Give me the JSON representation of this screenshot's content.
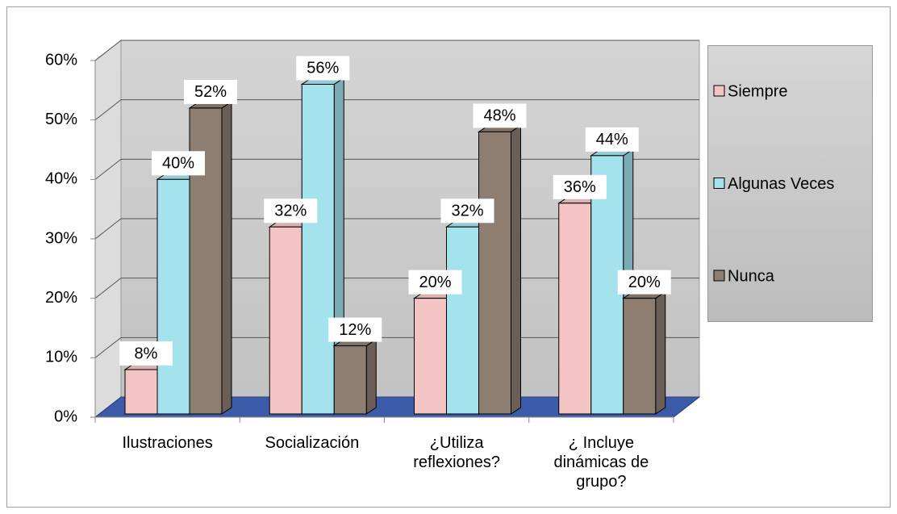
{
  "chart_data": {
    "type": "bar3d",
    "categories": [
      "Ilustraciones",
      "Socialización",
      "¿Utiliza reflexiones?",
      "¿ Incluye dinámicas de grupo?"
    ],
    "series": [
      {
        "name": "Siempre",
        "color": "#f4c4c4",
        "values": [
          8,
          32,
          20,
          36
        ],
        "value_labels": [
          "8%",
          "32%",
          "20%",
          "36%"
        ]
      },
      {
        "name": "Algunas Veces",
        "color": "#a4e2ee",
        "values": [
          40,
          56,
          32,
          44
        ],
        "value_labels": [
          "40%",
          "56%",
          "32%",
          "44%"
        ]
      },
      {
        "name": "Nunca",
        "color": "#8e7e72",
        "values": [
          52,
          12,
          48,
          20
        ],
        "value_labels": [
          "52%",
          "12%",
          "48%",
          "20%"
        ]
      }
    ],
    "ylim": [
      0,
      60
    ],
    "yticks": [
      {
        "value": 0,
        "label": "0%"
      },
      {
        "value": 10,
        "label": "10%"
      },
      {
        "value": 20,
        "label": "20%"
      },
      {
        "value": 30,
        "label": "30%"
      },
      {
        "value": 40,
        "label": "40%"
      },
      {
        "value": 50,
        "label": "50%"
      },
      {
        "value": 60,
        "label": "60%"
      }
    ],
    "grid": true,
    "legend": "right"
  }
}
